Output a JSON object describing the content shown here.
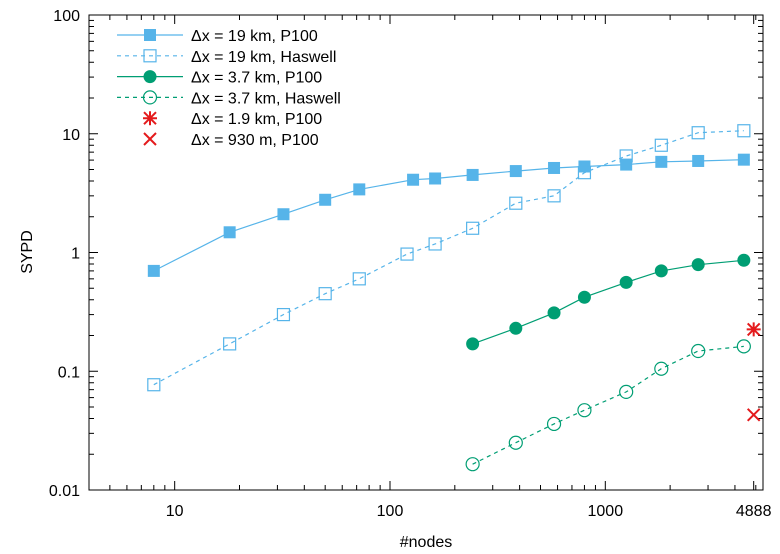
{
  "chart_data": {
    "type": "line",
    "title": "",
    "xlabel": "#nodes",
    "ylabel": "SYPD",
    "x_scale": "log",
    "y_scale": "log",
    "xlim": [
      4,
      5400
    ],
    "ylim": [
      0.01,
      100
    ],
    "x_ticks": [
      {
        "value": 10,
        "label": "10"
      },
      {
        "value": 100,
        "label": "100"
      },
      {
        "value": 1000,
        "label": "1000"
      },
      {
        "value": 4888,
        "label": "4888"
      }
    ],
    "y_ticks": [
      {
        "value": 0.01,
        "label": "0.01"
      },
      {
        "value": 0.1,
        "label": "0.1"
      },
      {
        "value": 1,
        "label": "1"
      },
      {
        "value": 10,
        "label": "10"
      },
      {
        "value": 100,
        "label": "100"
      }
    ],
    "grid": false,
    "legend_position": "top-left",
    "series": [
      {
        "name": "Δx = 19 km, P100",
        "color": "#56b4e9",
        "marker": "filled-square",
        "line": "solid",
        "x": [
          8,
          18,
          32,
          50,
          72,
          128,
          162,
          242,
          384,
          578,
          800,
          1250,
          1820,
          2700,
          4400
        ],
        "y": [
          0.7,
          1.48,
          2.1,
          2.78,
          3.4,
          4.1,
          4.2,
          4.5,
          4.85,
          5.15,
          5.3,
          5.5,
          5.8,
          5.9,
          6.05
        ]
      },
      {
        "name": "Δx = 19 km, Haswell",
        "color": "#56b4e9",
        "marker": "open-square",
        "line": "dashed",
        "x": [
          8,
          18,
          32,
          50,
          72,
          120,
          162,
          242,
          384,
          578,
          800,
          1250,
          1820,
          2700,
          4400
        ],
        "y": [
          0.077,
          0.17,
          0.3,
          0.45,
          0.6,
          0.97,
          1.18,
          1.6,
          2.6,
          3.0,
          4.7,
          6.5,
          8.0,
          10.2,
          10.6
        ]
      },
      {
        "name": "Δx = 3.7 km, P100",
        "color": "#009e73",
        "marker": "filled-circle",
        "line": "solid",
        "x": [
          242,
          384,
          578,
          800,
          1250,
          1820,
          2700,
          4400
        ],
        "y": [
          0.17,
          0.23,
          0.31,
          0.42,
          0.56,
          0.7,
          0.79,
          0.86
        ]
      },
      {
        "name": "Δx = 3.7 km, Haswell",
        "color": "#009e73",
        "marker": "open-circle",
        "line": "dashed",
        "x": [
          242,
          384,
          578,
          800,
          1250,
          1820,
          2700,
          4400
        ],
        "y": [
          0.0165,
          0.025,
          0.036,
          0.047,
          0.067,
          0.105,
          0.148,
          0.162
        ]
      },
      {
        "name": "Δx = 1.9 km, P100",
        "color": "#e41a1c",
        "marker": "asterisk",
        "line": "none",
        "x": [
          4888
        ],
        "y": [
          0.225
        ]
      },
      {
        "name": "Δx = 930 m, P100",
        "color": "#e41a1c",
        "marker": "cross",
        "line": "none",
        "x": [
          4888
        ],
        "y": [
          0.043
        ]
      }
    ]
  }
}
